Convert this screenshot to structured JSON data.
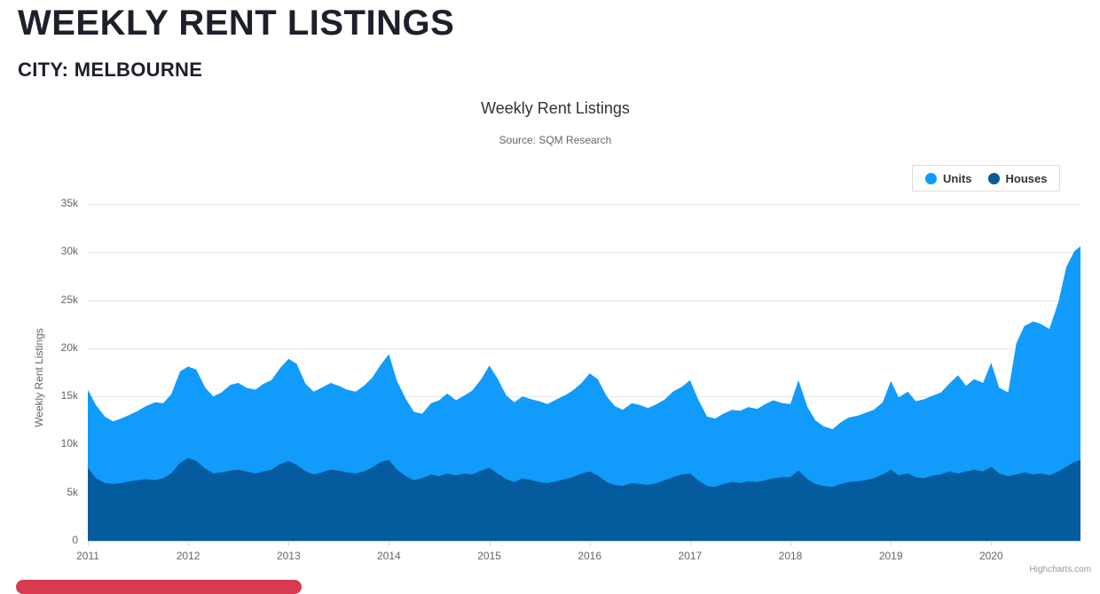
{
  "page": {
    "heading": "WEEKLY RENT LISTINGS",
    "subheading": "CITY: MELBOURNE"
  },
  "chart": {
    "title": "Weekly Rent Listings",
    "subtitle": "Source: SQM Research",
    "y_axis_title": "Weekly Rent Listings",
    "credit": "Highcharts.com",
    "legend_items": [
      {
        "label": "Units"
      },
      {
        "label": "Houses"
      }
    ],
    "y_ticks": [
      "35k",
      "30k",
      "25k",
      "20k",
      "15k",
      "10k",
      "5k",
      "0"
    ],
    "x_ticks": [
      "2011",
      "2012",
      "2013",
      "2014",
      "2015",
      "2016",
      "2017",
      "2018",
      "2019",
      "2020"
    ]
  },
  "chart_data": {
    "type": "area",
    "title": "Weekly Rent Listings",
    "subtitle": "Source: SQM Research",
    "xlabel": "",
    "ylabel": "Weekly Rent Listings",
    "xlim": [
      2011,
      2020.89
    ],
    "ylim": [
      0,
      35000
    ],
    "grid": true,
    "legend_position": "top-right",
    "x": [
      2011,
      2011.08,
      2011.17,
      2011.25,
      2011.33,
      2011.42,
      2011.5,
      2011.58,
      2011.67,
      2011.75,
      2011.83,
      2011.92,
      2012,
      2012.08,
      2012.17,
      2012.25,
      2012.33,
      2012.42,
      2012.5,
      2012.58,
      2012.67,
      2012.75,
      2012.83,
      2012.92,
      2013,
      2013.08,
      2013.17,
      2013.25,
      2013.33,
      2013.42,
      2013.5,
      2013.58,
      2013.67,
      2013.75,
      2013.83,
      2013.92,
      2014,
      2014.08,
      2014.17,
      2014.25,
      2014.33,
      2014.42,
      2014.5,
      2014.58,
      2014.67,
      2014.75,
      2014.83,
      2014.92,
      2015,
      2015.08,
      2015.17,
      2015.25,
      2015.33,
      2015.42,
      2015.5,
      2015.58,
      2015.67,
      2015.75,
      2015.83,
      2015.92,
      2016,
      2016.08,
      2016.17,
      2016.25,
      2016.33,
      2016.42,
      2016.5,
      2016.58,
      2016.67,
      2016.75,
      2016.83,
      2016.92,
      2017,
      2017.08,
      2017.17,
      2017.25,
      2017.33,
      2017.42,
      2017.5,
      2017.58,
      2017.67,
      2017.75,
      2017.83,
      2017.92,
      2018,
      2018.08,
      2018.17,
      2018.25,
      2018.33,
      2018.42,
      2018.5,
      2018.58,
      2018.67,
      2018.75,
      2018.83,
      2018.92,
      2019,
      2019.08,
      2019.17,
      2019.25,
      2019.33,
      2019.42,
      2019.5,
      2019.58,
      2019.67,
      2019.75,
      2019.83,
      2019.92,
      2020,
      2020.08,
      2020.17,
      2020.25,
      2020.33,
      2020.42,
      2020.5,
      2020.58,
      2020.67,
      2020.75,
      2020.83,
      2020.89
    ],
    "series": [
      {
        "name": "Units",
        "color": "#119bfb",
        "values": [
          15700,
          14100,
          12900,
          12400,
          12700,
          13100,
          13500,
          14000,
          14400,
          14300,
          15200,
          17600,
          18100,
          17800,
          15900,
          15000,
          15400,
          16200,
          16400,
          15900,
          15700,
          16300,
          16700,
          18000,
          18900,
          18400,
          16300,
          15500,
          15900,
          16400,
          16100,
          15700,
          15500,
          16100,
          16900,
          18300,
          19400,
          16600,
          14700,
          13400,
          13200,
          14300,
          14600,
          15300,
          14600,
          15100,
          15600,
          16800,
          18200,
          16900,
          15100,
          14400,
          15000,
          14700,
          14500,
          14200,
          14700,
          15100,
          15600,
          16400,
          17400,
          16800,
          15000,
          14000,
          13600,
          14300,
          14100,
          13800,
          14200,
          14700,
          15500,
          16000,
          16700,
          14700,
          12900,
          12700,
          13200,
          13600,
          13500,
          13900,
          13700,
          14200,
          14600,
          14300,
          14200,
          16700,
          13900,
          12500,
          11900,
          11600,
          12300,
          12800,
          13000,
          13300,
          13600,
          14400,
          16600,
          14900,
          15500,
          14500,
          14700,
          15100,
          15400,
          16300,
          17200,
          16100,
          16800,
          16400,
          18500,
          15900,
          15400,
          20500,
          22300,
          22800,
          22500,
          22000,
          24800,
          28500,
          30100,
          30600
        ]
      },
      {
        "name": "Houses",
        "color": "#045b9e",
        "values": [
          7600,
          6500,
          6000,
          5900,
          6000,
          6200,
          6300,
          6400,
          6300,
          6500,
          7000,
          8100,
          8600,
          8300,
          7500,
          7000,
          7100,
          7300,
          7400,
          7200,
          7000,
          7200,
          7400,
          8000,
          8300,
          7900,
          7200,
          6900,
          7100,
          7400,
          7300,
          7100,
          7000,
          7200,
          7600,
          8200,
          8400,
          7400,
          6700,
          6300,
          6500,
          6900,
          6700,
          7000,
          6800,
          7000,
          6900,
          7300,
          7600,
          7000,
          6400,
          6100,
          6500,
          6300,
          6100,
          6000,
          6200,
          6400,
          6600,
          7000,
          7200,
          6800,
          6100,
          5800,
          5700,
          6000,
          5900,
          5800,
          6000,
          6300,
          6600,
          6900,
          7000,
          6300,
          5700,
          5600,
          5900,
          6100,
          6000,
          6200,
          6100,
          6300,
          6500,
          6600,
          6600,
          7300,
          6400,
          5900,
          5700,
          5600,
          5900,
          6100,
          6200,
          6300,
          6500,
          6900,
          7400,
          6800,
          7000,
          6600,
          6500,
          6800,
          6900,
          7200,
          7000,
          7200,
          7400,
          7200,
          7700,
          7000,
          6700,
          6900,
          7100,
          6900,
          7000,
          6800,
          7200,
          7700,
          8200,
          8400
        ]
      }
    ]
  }
}
